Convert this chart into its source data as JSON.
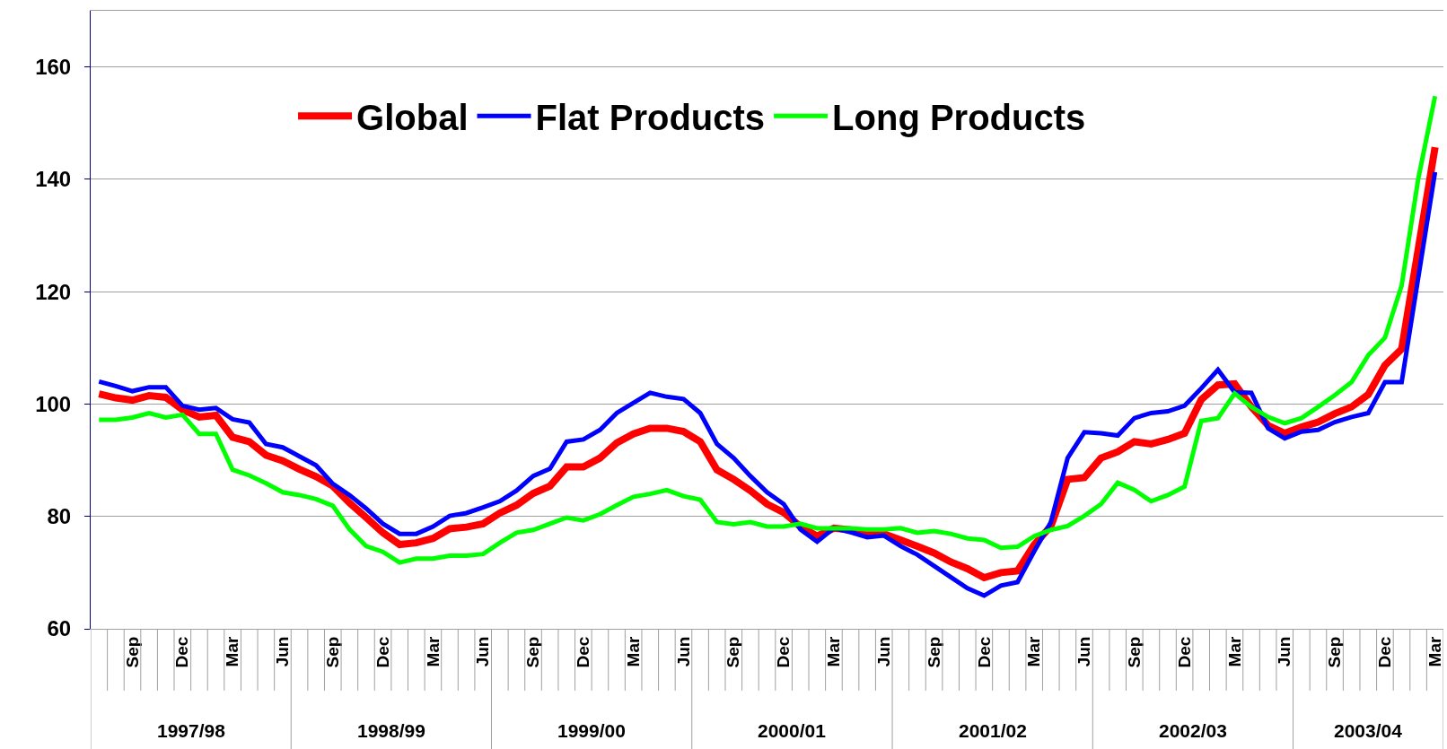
{
  "chart_data": {
    "type": "line",
    "categories": [
      null,
      null,
      "Sep",
      null,
      null,
      "Dec",
      null,
      null,
      "Mar",
      null,
      null,
      "Jun",
      null,
      null,
      "Sep",
      null,
      null,
      "Dec",
      null,
      null,
      "Mar",
      null,
      null,
      "Jun",
      null,
      null,
      "Sep",
      null,
      null,
      "Dec",
      null,
      null,
      "Mar",
      null,
      null,
      "Jun",
      null,
      null,
      "Sep",
      null,
      null,
      "Dec",
      null,
      null,
      "Mar",
      null,
      null,
      "Jun",
      null,
      null,
      "Sep",
      null,
      null,
      "Dec",
      null,
      null,
      "Mar",
      null,
      null,
      "Jun",
      null,
      null,
      "Sep",
      null,
      null,
      "Dec",
      null,
      null,
      "Mar",
      null,
      null,
      "Jun",
      null,
      null,
      "Sep",
      null,
      null,
      "Dec",
      null,
      null,
      "Mar"
    ],
    "series": [
      {
        "name": "Global",
        "color": "#ff0000",
        "values": [
          101.8,
          101.1,
          100.7,
          101.5,
          101.2,
          99.0,
          97.7,
          98.0,
          94.1,
          93.3,
          90.9,
          89.9,
          88.4,
          87.1,
          85.4,
          82.4,
          79.8,
          77.1,
          75.0,
          75.3,
          76.1,
          77.8,
          78.1,
          78.7,
          80.6,
          82.0,
          84.1,
          85.4,
          88.8,
          88.8,
          90.4,
          93.1,
          94.7,
          95.7,
          95.7,
          95.1,
          93.3,
          88.3,
          86.6,
          84.6,
          82.2,
          80.7,
          78.2,
          76.5,
          77.9,
          77.6,
          77.1,
          76.9,
          75.8,
          74.7,
          73.5,
          71.9,
          70.7,
          69.1,
          70.0,
          70.3,
          75.0,
          78.3,
          86.6,
          86.9,
          90.4,
          91.5,
          93.3,
          92.9,
          93.7,
          94.8,
          100.8,
          103.4,
          103.6,
          99.5,
          96.2,
          94.8,
          95.9,
          96.8,
          98.3,
          99.5,
          101.7,
          106.9,
          109.8,
          127.7,
          145.7
        ]
      },
      {
        "name": "Flat Products",
        "color": "#0000ff",
        "values": [
          104.0,
          103.2,
          102.3,
          103.0,
          103.0,
          99.7,
          99.0,
          99.3,
          97.3,
          96.7,
          92.9,
          92.3,
          90.7,
          89.1,
          85.8,
          83.8,
          81.4,
          78.7,
          76.9,
          76.9,
          78.2,
          80.1,
          80.6,
          81.6,
          82.7,
          84.6,
          87.2,
          88.5,
          93.3,
          93.7,
          95.4,
          98.4,
          100.2,
          102.0,
          101.3,
          100.9,
          98.4,
          92.9,
          90.4,
          87.2,
          84.3,
          82.2,
          77.7,
          75.5,
          77.9,
          77.2,
          76.3,
          76.6,
          74.7,
          73.2,
          71.2,
          69.2,
          67.2,
          65.9,
          67.7,
          68.3,
          73.8,
          79.0,
          90.4,
          95.0,
          94.8,
          94.4,
          97.5,
          98.4,
          98.7,
          99.7,
          102.8,
          106.1,
          102.1,
          102.0,
          95.7,
          93.9,
          95.1,
          95.4,
          96.8,
          97.7,
          98.4,
          103.9,
          103.9,
          122.6,
          141.3
        ]
      },
      {
        "name": "Long Products",
        "color": "#00ff00",
        "values": [
          97.2,
          97.2,
          97.6,
          98.4,
          97.6,
          98.1,
          94.7,
          94.7,
          88.3,
          87.3,
          85.9,
          84.3,
          83.8,
          83.1,
          81.9,
          77.7,
          74.7,
          73.7,
          71.8,
          72.5,
          72.5,
          73.0,
          73.0,
          73.3,
          75.3,
          77.1,
          77.6,
          78.7,
          79.8,
          79.3,
          80.4,
          82.0,
          83.5,
          84.0,
          84.7,
          83.6,
          83.0,
          79.0,
          78.6,
          79.0,
          78.2,
          78.2,
          78.7,
          77.9,
          77.9,
          77.9,
          77.7,
          77.7,
          77.9,
          77.1,
          77.4,
          76.9,
          76.1,
          75.8,
          74.4,
          74.6,
          76.5,
          77.6,
          78.3,
          80.1,
          82.2,
          86.0,
          84.7,
          82.7,
          83.8,
          85.3,
          97.0,
          97.5,
          101.9,
          99.5,
          97.7,
          96.6,
          97.5,
          99.5,
          101.6,
          103.9,
          108.7,
          111.8,
          121.1,
          140.2,
          154.8
        ]
      }
    ],
    "ylim": [
      60,
      170
    ],
    "yticks": [
      60,
      80,
      100,
      120,
      140,
      160
    ],
    "grid": "y",
    "legend": "top",
    "marker": "none",
    "line_style": "solid",
    "annotations": [
      "1997/98",
      "1998/99",
      "1999/00",
      "2000/01",
      "2001/02",
      "2002/03",
      "2003/04"
    ]
  }
}
